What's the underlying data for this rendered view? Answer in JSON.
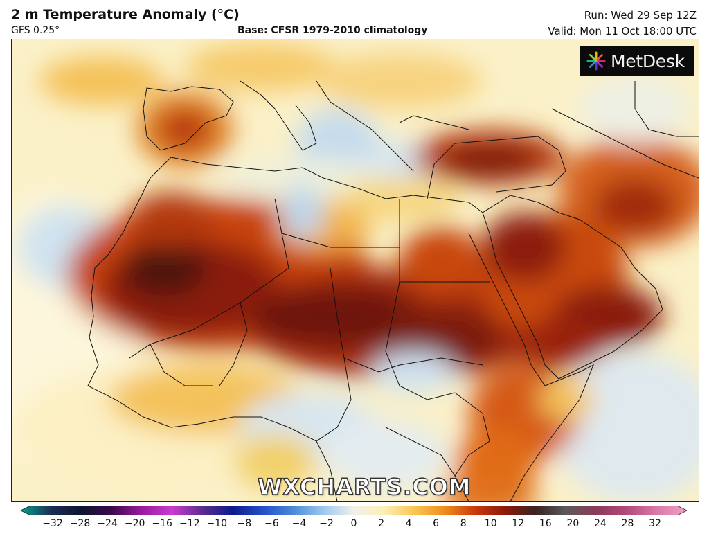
{
  "header": {
    "title": "2 m Temperature Anomaly (°C)",
    "model": "GFS 0.25°",
    "base": "Base: CFSR 1979-2010 climatology",
    "run": "Run: Wed 29 Sep 12Z",
    "valid": "Valid: Mon 11 Oct 18:00 UTC"
  },
  "logo": {
    "text": "MetDesk",
    "icon": "starburst-icon"
  },
  "watermark": "WXCHARTS.COM",
  "legend": {
    "unit": "°C",
    "ticks": [
      "−32",
      "−28",
      "−24",
      "−20",
      "−16",
      "−12",
      "−10",
      "−8",
      "−6",
      "−4",
      "−2",
      "0",
      "2",
      "4",
      "6",
      "8",
      "10",
      "12",
      "16",
      "20",
      "24",
      "28",
      "32"
    ],
    "colors": [
      "#0a9e86",
      "#1a2f55",
      "#0f1530",
      "#3b0a4a",
      "#9b1aa1",
      "#c93cd0",
      "#5a2d8f",
      "#0c1a8c",
      "#2450c8",
      "#4a8ad8",
      "#9ec8ee",
      "#f1f1ea",
      "#fcefb6",
      "#f9c652",
      "#f08c1c",
      "#c9390e",
      "#8c1a08",
      "#3a2222",
      "#5a5a5a",
      "#8a3a5a",
      "#b44a7a",
      "#d87aa8",
      "#eea0c4"
    ]
  },
  "map": {
    "region": "North Africa, Middle East and Europe",
    "colors": {
      "cold": "#b7d6f0",
      "neutral": "#fbf4d0",
      "warm": "#f5b43a",
      "hot": "#d04a10",
      "very_hot": "#8a1a06",
      "extreme": "#4a1414"
    }
  }
}
